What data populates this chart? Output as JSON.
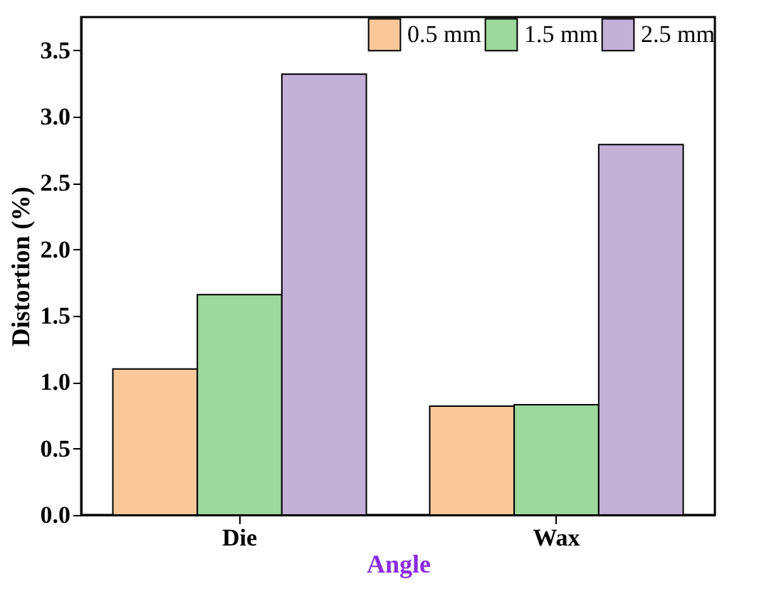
{
  "chart_data": {
    "type": "bar",
    "xlabel": "Angle",
    "ylabel": "Distortion (%)",
    "categories": [
      "Die",
      "Wax"
    ],
    "series": [
      {
        "name": "0.5 mm",
        "color": "#fac898",
        "values": [
          1.1,
          0.82
        ]
      },
      {
        "name": "1.5 mm",
        "color": "#9dd89d",
        "values": [
          1.66,
          0.83
        ]
      },
      {
        "name": "2.5 mm",
        "color": "#c3b1d8",
        "values": [
          3.32,
          2.79
        ]
      }
    ],
    "ylim": [
      0,
      3.75
    ],
    "yticks": [
      {
        "value": 0,
        "label": "0.0"
      },
      0.5,
      {
        "value": 1,
        "label": "1.0"
      },
      1.5,
      {
        "value": 2,
        "label": "2.0"
      },
      2.5,
      {
        "value": 3,
        "label": "3.0"
      },
      3.5
    ],
    "legend": "top right",
    "grid": false
  }
}
